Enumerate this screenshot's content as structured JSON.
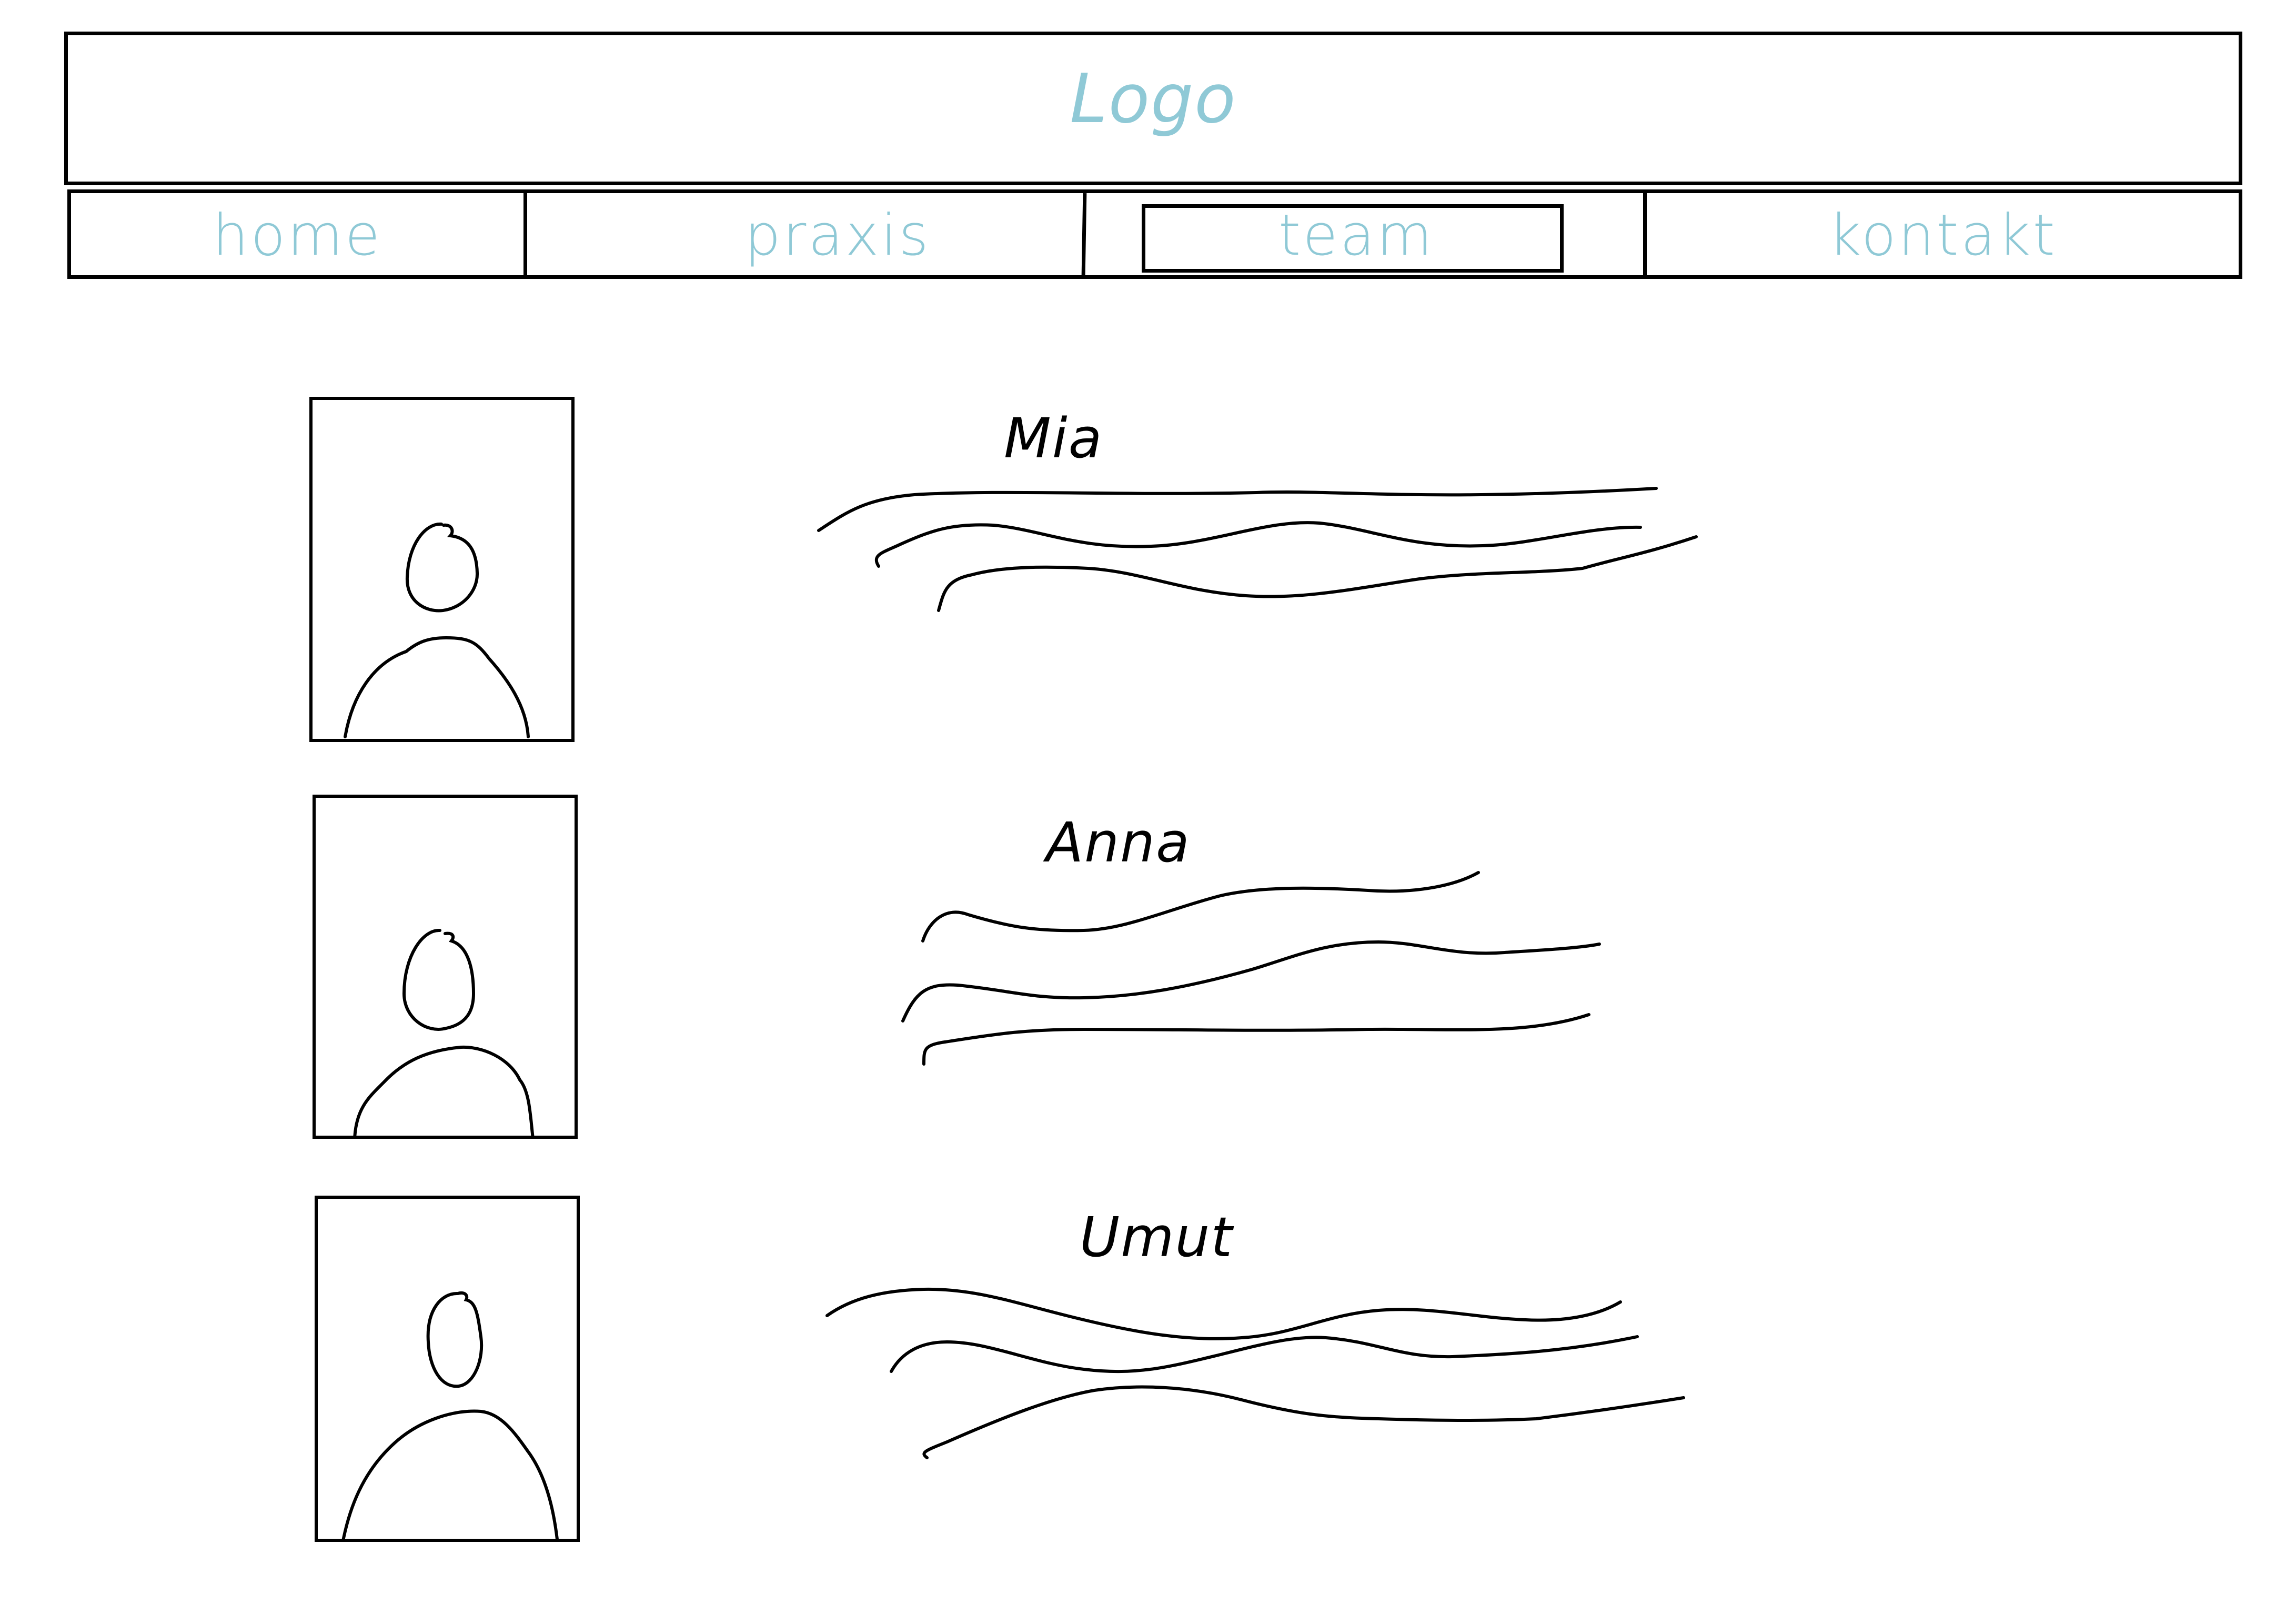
{
  "header": {
    "logo_text": "Logo"
  },
  "nav": {
    "items": [
      {
        "label": "home",
        "active": false
      },
      {
        "label": "praxis",
        "active": false
      },
      {
        "label": "team",
        "active": true
      },
      {
        "label": "kontakt",
        "active": false
      }
    ]
  },
  "team": {
    "members": [
      {
        "name": "Mia",
        "photo_icon": "person-placeholder-icon"
      },
      {
        "name": "Anna",
        "photo_icon": "person-placeholder-icon"
      },
      {
        "name": "Umut",
        "photo_icon": "person-placeholder-icon"
      }
    ]
  },
  "colors": {
    "accent": "#8fc9d6",
    "stroke": "#000000",
    "background": "#ffffff"
  }
}
